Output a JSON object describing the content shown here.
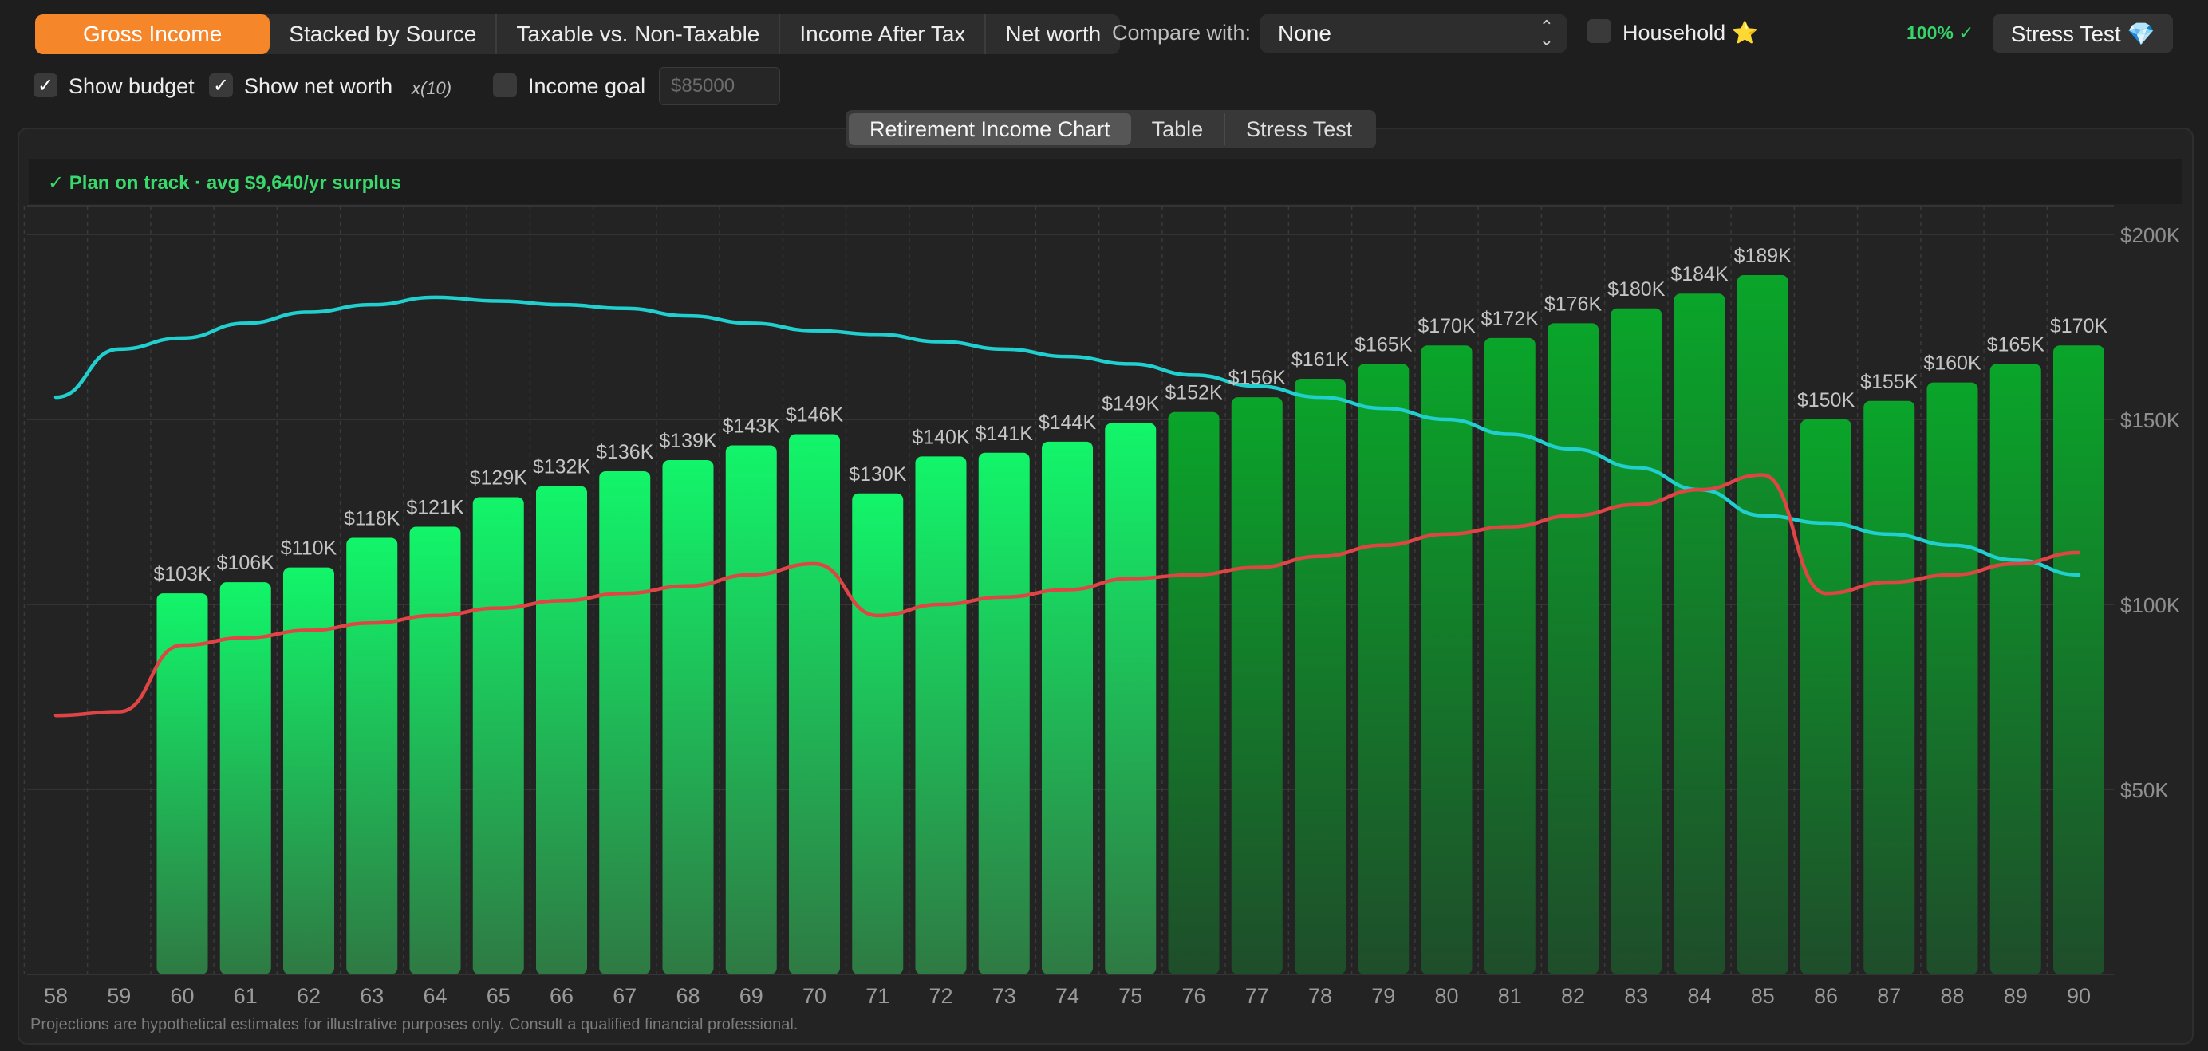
{
  "view_tabs": [
    "Gross Income",
    "Stacked by Source",
    "Taxable vs. Non-Taxable",
    "Income After Tax",
    "Net worth"
  ],
  "compare": {
    "label": "Compare with:",
    "value": "None"
  },
  "household": {
    "label": "Household ⭐",
    "checked": false
  },
  "score": "100% ✓",
  "stress_button": "Stress Test 💎",
  "options": {
    "show_budget": {
      "label": "Show budget",
      "checked": true
    },
    "show_net_worth": {
      "label": "Show net worth",
      "checked": true
    },
    "multiplier": "x(10)",
    "income_goal": {
      "label": "Income goal",
      "checked": false,
      "placeholder": "$85000"
    }
  },
  "panel_tabs": [
    "Retirement Income Chart",
    "Table",
    "Stress Test"
  ],
  "status": "✓  Plan on track  ·  avg $9,640/yr surplus",
  "disclaimer": "Projections are hypothetical estimates for illustrative purposes only. Consult a qualified financial professional.",
  "colors": {
    "accent": "#f5862a",
    "bar_bright": "#12f56a",
    "bar_dark": "#0aa52a",
    "net_worth": "#22cfcf",
    "budget": "#e04545",
    "ok": "#39d96c"
  },
  "chart_data": {
    "type": "bar",
    "x": [
      58,
      59,
      60,
      61,
      62,
      63,
      64,
      65,
      66,
      67,
      68,
      69,
      70,
      71,
      72,
      73,
      74,
      75,
      76,
      77,
      78,
      79,
      80,
      81,
      82,
      83,
      84,
      85,
      86,
      87,
      88,
      89,
      90
    ],
    "values": [
      null,
      null,
      103,
      106,
      110,
      118,
      121,
      129,
      132,
      136,
      139,
      143,
      146,
      130,
      140,
      141,
      144,
      149,
      152,
      156,
      161,
      165,
      170,
      172,
      176,
      180,
      184,
      189,
      150,
      155,
      160,
      165,
      170
    ],
    "labels": [
      "",
      "",
      "$103K",
      "$106K",
      "$110K",
      "$118K",
      "$121K",
      "$129K",
      "$132K",
      "$136K",
      "$139K",
      "$143K",
      "$146K",
      "$130K",
      "$140K",
      "$141K",
      "$144K",
      "$149K",
      "$152K",
      "$156K",
      "$161K",
      "$165K",
      "$170K",
      "$172K",
      "$176K",
      "$180K",
      "$184K",
      "$189K",
      "$150K",
      "$155K",
      "$160K",
      "$165K",
      "$170K"
    ],
    "value_unit": "thousands USD",
    "bright_until_age": 75,
    "lines": [
      {
        "key": "net_worth",
        "scale": "x10",
        "values": [
          156,
          169,
          172,
          176,
          179,
          181,
          183,
          182,
          181,
          180,
          178,
          176,
          174,
          173,
          171,
          169,
          167,
          165,
          162,
          159,
          156,
          153,
          150,
          146,
          142,
          137,
          131,
          124,
          122,
          119,
          116,
          112,
          108
        ]
      },
      {
        "key": "budget",
        "values": [
          70,
          71,
          89,
          91,
          93,
          95,
          97,
          99,
          101,
          103,
          105,
          108,
          111,
          97,
          100,
          102,
          104,
          107,
          108,
          110,
          113,
          116,
          119,
          121,
          124,
          127,
          131,
          135,
          103,
          106,
          108,
          111,
          114
        ]
      }
    ],
    "yticks": [
      "$200K",
      "$150K",
      "$100K",
      "$50K"
    ],
    "ylim": [
      0,
      200
    ],
    "grid": true
  }
}
